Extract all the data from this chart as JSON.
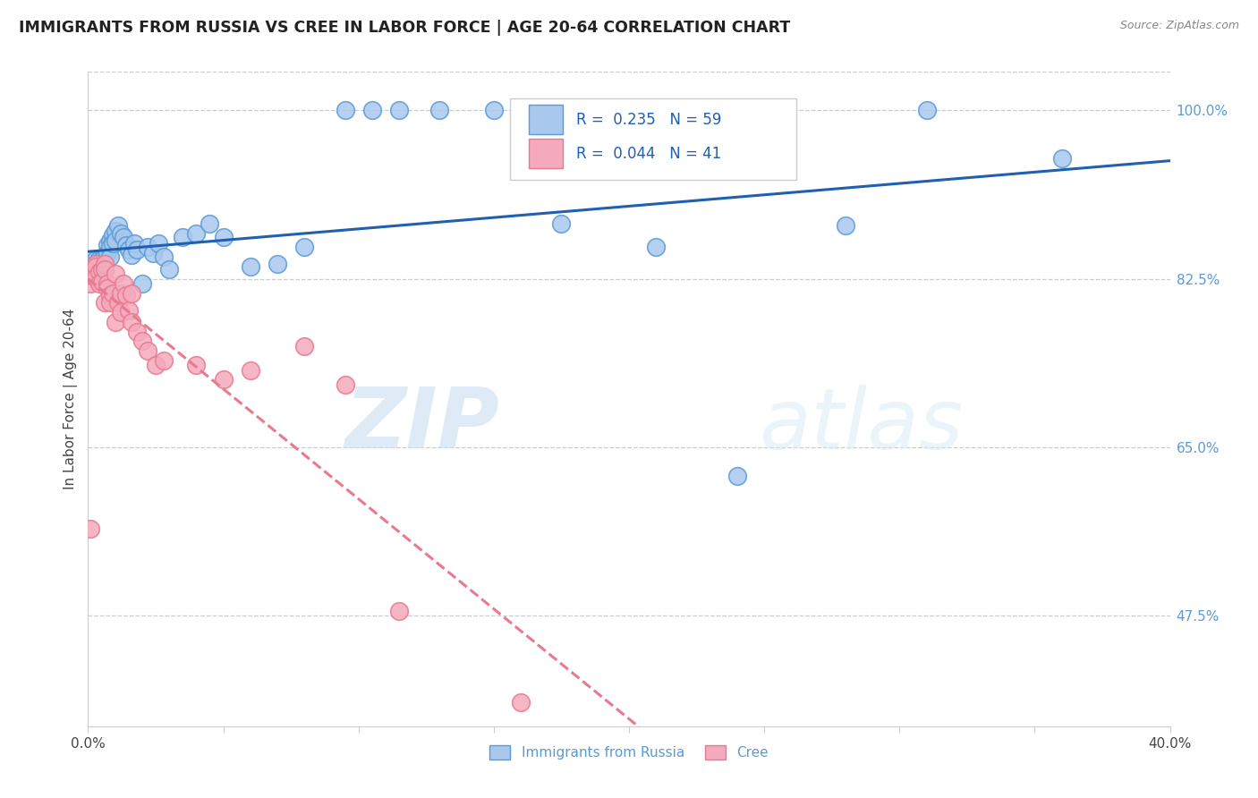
{
  "title": "IMMIGRANTS FROM RUSSIA VS CREE IN LABOR FORCE | AGE 20-64 CORRELATION CHART",
  "source": "Source: ZipAtlas.com",
  "ylabel": "In Labor Force | Age 20-64",
  "legend_label1": "Immigrants from Russia",
  "legend_label2": "Cree",
  "R1": 0.235,
  "N1": 59,
  "R2": 0.044,
  "N2": 41,
  "xlim": [
    0.0,
    0.4
  ],
  "ylim": [
    0.36,
    1.04
  ],
  "xticks": [
    0.0,
    0.05,
    0.1,
    0.15,
    0.2,
    0.25,
    0.3,
    0.35,
    0.4
  ],
  "yticks_right": [
    0.475,
    0.65,
    0.825,
    1.0
  ],
  "ytick_labels_right": [
    "47.5%",
    "65.0%",
    "82.5%",
    "100.0%"
  ],
  "color_russia": "#A8C8EE",
  "color_cree": "#F4AABC",
  "color_russia_edge": "#5B9BD5",
  "color_cree_edge": "#E87A90",
  "color_russia_line": "#2060B0",
  "color_cree_line": "#E87A90",
  "russia_x": [
    0.001,
    0.001,
    0.001,
    0.002,
    0.002,
    0.002,
    0.003,
    0.003,
    0.003,
    0.004,
    0.004,
    0.004,
    0.005,
    0.005,
    0.005,
    0.006,
    0.006,
    0.006,
    0.007,
    0.007,
    0.008,
    0.008,
    0.008,
    0.009,
    0.009,
    0.01,
    0.01,
    0.011,
    0.012,
    0.013,
    0.014,
    0.015,
    0.016,
    0.017,
    0.018,
    0.02,
    0.022,
    0.024,
    0.026,
    0.028,
    0.03,
    0.035,
    0.04,
    0.045,
    0.05,
    0.06,
    0.07,
    0.08,
    0.095,
    0.105,
    0.115,
    0.13,
    0.15,
    0.175,
    0.21,
    0.24,
    0.28,
    0.31,
    0.36
  ],
  "russia_y": [
    0.84,
    0.835,
    0.828,
    0.842,
    0.835,
    0.83,
    0.845,
    0.84,
    0.832,
    0.845,
    0.838,
    0.83,
    0.845,
    0.84,
    0.835,
    0.848,
    0.843,
    0.836,
    0.86,
    0.852,
    0.865,
    0.858,
    0.848,
    0.87,
    0.862,
    0.875,
    0.865,
    0.88,
    0.872,
    0.868,
    0.86,
    0.855,
    0.85,
    0.862,
    0.855,
    0.82,
    0.858,
    0.852,
    0.862,
    0.848,
    0.835,
    0.868,
    0.872,
    0.882,
    0.868,
    0.838,
    0.84,
    0.858,
    1.0,
    1.0,
    1.0,
    1.0,
    1.0,
    0.882,
    0.858,
    0.62,
    0.88,
    1.0,
    0.95
  ],
  "cree_x": [
    0.001,
    0.001,
    0.002,
    0.002,
    0.003,
    0.003,
    0.003,
    0.004,
    0.004,
    0.005,
    0.005,
    0.006,
    0.006,
    0.006,
    0.007,
    0.007,
    0.008,
    0.008,
    0.009,
    0.01,
    0.01,
    0.011,
    0.012,
    0.012,
    0.013,
    0.014,
    0.015,
    0.016,
    0.016,
    0.018,
    0.02,
    0.022,
    0.025,
    0.028,
    0.04,
    0.05,
    0.06,
    0.08,
    0.095,
    0.115,
    0.16
  ],
  "cree_y": [
    0.565,
    0.82,
    0.835,
    0.828,
    0.84,
    0.838,
    0.826,
    0.832,
    0.82,
    0.835,
    0.822,
    0.84,
    0.835,
    0.8,
    0.82,
    0.815,
    0.808,
    0.8,
    0.81,
    0.83,
    0.78,
    0.8,
    0.81,
    0.79,
    0.82,
    0.808,
    0.792,
    0.81,
    0.78,
    0.77,
    0.76,
    0.75,
    0.735,
    0.74,
    0.735,
    0.72,
    0.73,
    0.755,
    0.715,
    0.48,
    0.385
  ]
}
